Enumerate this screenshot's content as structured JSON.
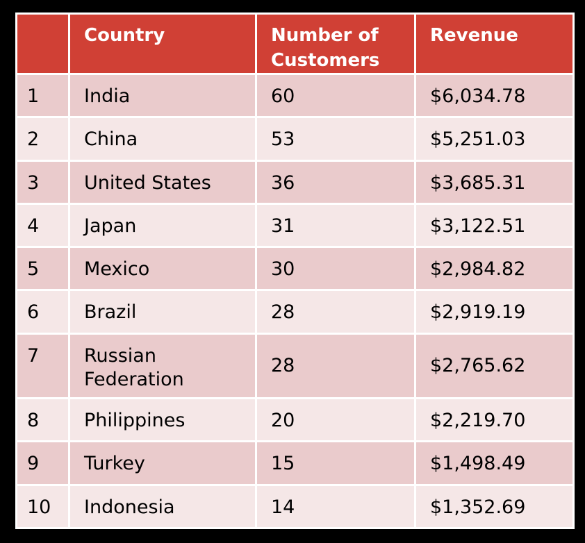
{
  "table": {
    "headers": {
      "rank": "",
      "country": "Country",
      "customers": "Number of Customers",
      "revenue": "Revenue"
    },
    "rows": [
      {
        "rank": "1",
        "country": "India",
        "customers": "60",
        "revenue": "$6,034.78"
      },
      {
        "rank": "2",
        "country": "China",
        "customers": "53",
        "revenue": "$5,251.03"
      },
      {
        "rank": "3",
        "country": "United States",
        "customers": "36",
        "revenue": "$3,685.31"
      },
      {
        "rank": "4",
        "country": "Japan",
        "customers": "31",
        "revenue": "$3,122.51"
      },
      {
        "rank": "5",
        "country": "Mexico",
        "customers": "30",
        "revenue": "$2,984.82"
      },
      {
        "rank": "6",
        "country": "Brazil",
        "customers": "28",
        "revenue": "$2,919.19"
      },
      {
        "rank": "7",
        "country": "Russian Federation",
        "customers": "28",
        "revenue": "$2,765.62"
      },
      {
        "rank": "8",
        "country": "Philippines",
        "customers": "20",
        "revenue": "$2,219.70"
      },
      {
        "rank": "9",
        "country": "Turkey",
        "customers": "15",
        "revenue": "$1,498.49"
      },
      {
        "rank": "10",
        "country": "Indonesia",
        "customers": "14",
        "revenue": "$1,352.69"
      }
    ]
  },
  "colors": {
    "header_background": "#d04035",
    "header_text": "#ffffff",
    "row_odd_background": "#eacbcc",
    "row_even_background": "#f5e7e7",
    "page_background": "#000000"
  },
  "chart_data": {
    "type": "table",
    "columns": [
      "",
      "Country",
      "Number of Customers",
      "Revenue"
    ],
    "rows": [
      [
        "1",
        "India",
        60,
        "$6,034.78"
      ],
      [
        "2",
        "China",
        53,
        "$5,251.03"
      ],
      [
        "3",
        "United States",
        36,
        "$3,685.31"
      ],
      [
        "4",
        "Japan",
        31,
        "$3,122.51"
      ],
      [
        "5",
        "Mexico",
        30,
        "$2,984.82"
      ],
      [
        "6",
        "Brazil",
        28,
        "$2,919.19"
      ],
      [
        "7",
        "Russian Federation",
        28,
        "$2,765.62"
      ],
      [
        "8",
        "Philippines",
        20,
        "$2,219.70"
      ],
      [
        "9",
        "Turkey",
        15,
        "$1,498.49"
      ],
      [
        "10",
        "Indonesia",
        14,
        "$1,352.69"
      ]
    ]
  }
}
